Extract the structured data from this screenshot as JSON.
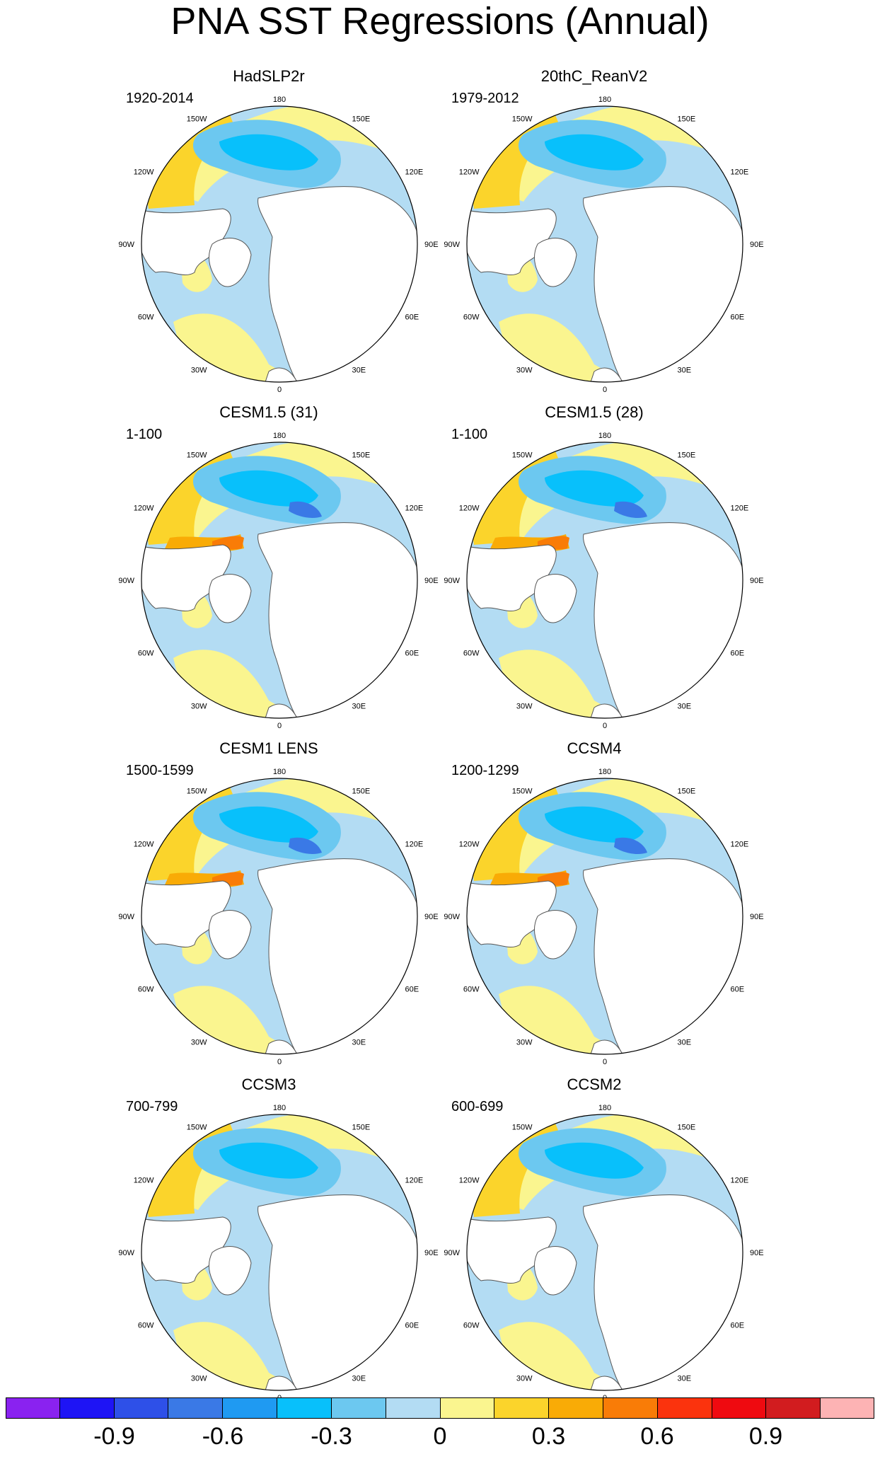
{
  "title": "PNA SST Regressions (Annual)",
  "longitude_labels": [
    "180",
    "150E",
    "120E",
    "90E",
    "60E",
    "30E",
    "0",
    "30W",
    "60W",
    "90W",
    "120W",
    "150W"
  ],
  "panels": [
    {
      "name": "HadSLP2r",
      "years": "1920-2014"
    },
    {
      "name": "20thC_ReanV2",
      "years": "1979-2012"
    },
    {
      "name": "CESM1.5 (31)",
      "years": "1-100"
    },
    {
      "name": "CESM1.5 (28)",
      "years": "1-100"
    },
    {
      "name": "CESM1 LENS",
      "years": "1500-1599"
    },
    {
      "name": "CCSM4",
      "years": "1200-1299"
    },
    {
      "name": "CCSM3",
      "years": "700-799"
    },
    {
      "name": "CCSM2",
      "years": "600-699"
    }
  ],
  "colorbar": {
    "colors": [
      "#8a22f0",
      "#1e14f5",
      "#2e50e8",
      "#3a79e6",
      "#1f9af2",
      "#08c0fb",
      "#6cc8f0",
      "#b3dcf3",
      "#faf58f",
      "#fbd42b",
      "#f9ab06",
      "#f97c07",
      "#fb330d",
      "#ef0a10",
      "#d21c1f",
      "#fdb3b4"
    ],
    "tick_labels": [
      "-0.9",
      "-0.6",
      "-0.3",
      "0",
      "0.3",
      "0.6",
      "0.9"
    ]
  }
}
